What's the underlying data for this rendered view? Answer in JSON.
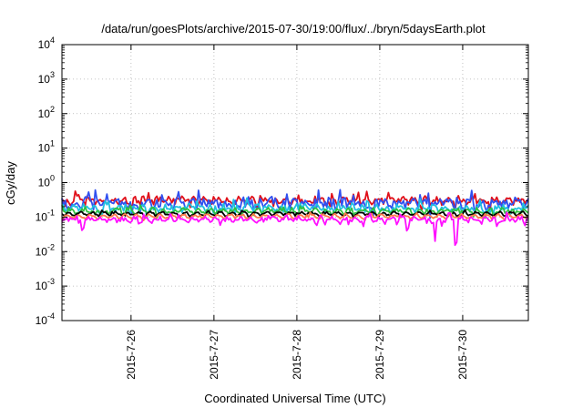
{
  "chart_data": {
    "type": "line",
    "title": "/data/run/goesPlots/archive/2015-07-30/19:00/flux/../bryn/5daysEarth.plot",
    "xlabel": "Coordinated Universal Time (UTC)",
    "ylabel": "cGy/day",
    "yscale": "log",
    "ylim": [
      0.0001,
      10000
    ],
    "xlim": [
      "2015-07-25T04:00",
      "2015-07-30T19:00"
    ],
    "grid": true,
    "x_ticks": [
      "2015-7-26",
      "2015-7-27",
      "2015-7-28",
      "2015-7-29",
      "2015-7-30"
    ],
    "y_ticks": [
      {
        "base": "10",
        "exp": "-4"
      },
      {
        "base": "10",
        "exp": "-3"
      },
      {
        "base": "10",
        "exp": "-2"
      },
      {
        "base": "10",
        "exp": "-1"
      },
      {
        "base": "10",
        "exp": "0"
      },
      {
        "base": "10",
        "exp": "1"
      },
      {
        "base": "10",
        "exp": "2"
      },
      {
        "base": "10",
        "exp": "3"
      },
      {
        "base": "10",
        "exp": "4"
      }
    ],
    "series": [
      {
        "color": "#e0101a",
        "level": 0.3,
        "dips": [],
        "amp": 0.18
      },
      {
        "color": "#3050f0",
        "level": 0.25,
        "dips": [],
        "amp": 0.3
      },
      {
        "color": "#20c0e0",
        "level": 0.18,
        "dips": [],
        "amp": 0.18
      },
      {
        "color": "#30c040",
        "level": 0.15,
        "dips": [],
        "amp": 0.12
      },
      {
        "color": "#000000",
        "level": 0.125,
        "dips": [],
        "amp": 0.06
      },
      {
        "color": "#ff7a4a",
        "level": 0.105,
        "dips": [],
        "amp": 0.06
      },
      {
        "color": "#ff10ff",
        "level": 0.085,
        "dips": [
          {
            "t": "2015-07-25T10:00",
            "v": 0.03
          },
          {
            "t": "2015-07-29T08:00",
            "v": 0.03
          },
          {
            "t": "2015-07-29T16:00",
            "v": 0.02
          },
          {
            "t": "2015-07-29T22:00",
            "v": 0.006
          },
          {
            "t": "2015-07-30T10:00",
            "v": 0.045
          }
        ],
        "amp": 0.12
      }
    ]
  }
}
